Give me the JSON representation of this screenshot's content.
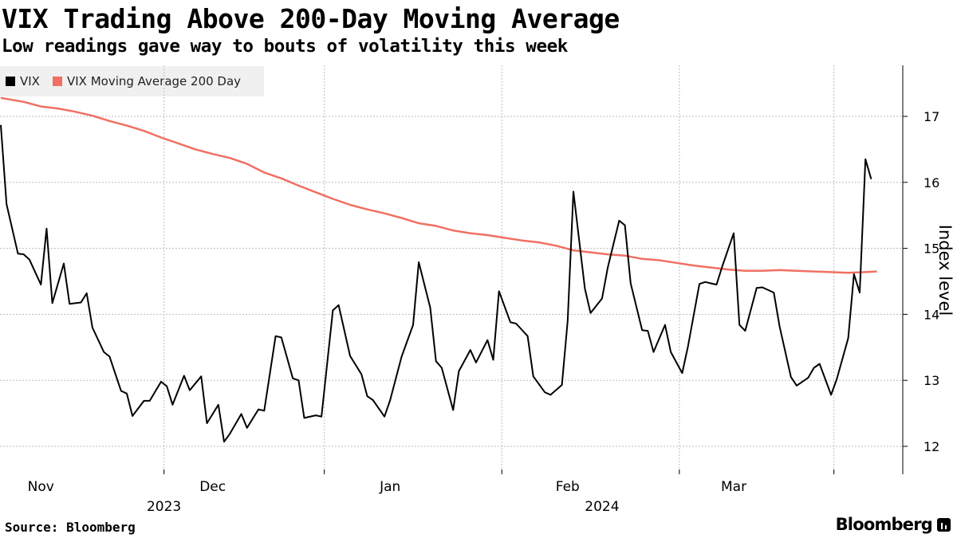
{
  "header": {
    "title": "VIX Trading Above 200-Day Moving Average",
    "subtitle": "Low readings gave way to bouts of volatility this week"
  },
  "footer": {
    "source": "Source: Bloomberg",
    "brand": "Bloomberg"
  },
  "colors": {
    "vix": "#000000",
    "ma": "#f07063",
    "grid": "#bdbdbd",
    "legend_bg": "#f0f0f0"
  },
  "chart_data": {
    "type": "line",
    "title": "VIX Trading Above 200-Day Moving Average",
    "subtitle": "Low readings gave way to bouts of volatility this week",
    "xlabel": "",
    "ylabel": "Index level",
    "ylim": [
      11.6,
      17.8
    ],
    "yticks": [
      12,
      13,
      14,
      15,
      16,
      17
    ],
    "ytick_labels": [
      "12",
      "13",
      "14",
      "15",
      "16",
      "17"
    ],
    "grid": true,
    "legend_position": "top-left",
    "x_range_days": [
      0,
      150
    ],
    "month_ticks": [
      {
        "label": "Nov",
        "day": 7
      },
      {
        "label": "Dec",
        "day": 37
      },
      {
        "label": "Jan",
        "day": 68
      },
      {
        "label": "Feb",
        "day": 99
      },
      {
        "label": "Mar",
        "day": 128
      }
    ],
    "month_boundaries": [
      28.5,
      56.5,
      87.5,
      118.5,
      145.5
    ],
    "year_labels": [
      {
        "label": "2023",
        "day": 28.5
      },
      {
        "label": "2024",
        "day": 105
      }
    ],
    "series": [
      {
        "name": "VIX",
        "color": "#000000",
        "points": [
          [
            0,
            16.87
          ],
          [
            1,
            15.67
          ],
          [
            3,
            14.92
          ],
          [
            4,
            14.91
          ],
          [
            5,
            14.83
          ],
          [
            7,
            14.45
          ],
          [
            8,
            15.3
          ],
          [
            9,
            14.17
          ],
          [
            11,
            14.77
          ],
          [
            12,
            14.16
          ],
          [
            14,
            14.18
          ],
          [
            15,
            14.32
          ],
          [
            16,
            13.8
          ],
          [
            18,
            13.43
          ],
          [
            19,
            13.36
          ],
          [
            21,
            12.84
          ],
          [
            22,
            12.8
          ],
          [
            23,
            12.46
          ],
          [
            25,
            12.69
          ],
          [
            26,
            12.69
          ],
          [
            28,
            12.98
          ],
          [
            29,
            12.91
          ],
          [
            30,
            12.63
          ],
          [
            32,
            13.07
          ],
          [
            33,
            12.85
          ],
          [
            35,
            13.06
          ],
          [
            36,
            12.35
          ],
          [
            38,
            12.63
          ],
          [
            39,
            12.07
          ],
          [
            40,
            12.19
          ],
          [
            42,
            12.49
          ],
          [
            43,
            12.28
          ],
          [
            45,
            12.56
          ],
          [
            46,
            12.54
          ],
          [
            48,
            13.67
          ],
          [
            49,
            13.65
          ],
          [
            51,
            13.03
          ],
          [
            52,
            13.0
          ],
          [
            53,
            12.43
          ],
          [
            55,
            12.47
          ],
          [
            56,
            12.45
          ],
          [
            58,
            14.06
          ],
          [
            59,
            14.14
          ],
          [
            61,
            13.37
          ],
          [
            63,
            13.09
          ],
          [
            64,
            12.76
          ],
          [
            65,
            12.7
          ],
          [
            67,
            12.45
          ],
          [
            68,
            12.7
          ],
          [
            70,
            13.36
          ],
          [
            72,
            13.84
          ],
          [
            73,
            14.79
          ],
          [
            75,
            14.1
          ],
          [
            76,
            13.29
          ],
          [
            77,
            13.19
          ],
          [
            79,
            12.55
          ],
          [
            80,
            13.14
          ],
          [
            82,
            13.46
          ],
          [
            83,
            13.27
          ],
          [
            85,
            13.61
          ],
          [
            86,
            13.31
          ],
          [
            87,
            14.35
          ],
          [
            89,
            13.88
          ],
          [
            90,
            13.86
          ],
          [
            92,
            13.67
          ],
          [
            93,
            13.06
          ],
          [
            95,
            12.82
          ],
          [
            96,
            12.78
          ],
          [
            98,
            12.93
          ],
          [
            99,
            13.9
          ],
          [
            100,
            15.86
          ],
          [
            102,
            14.39
          ],
          [
            103,
            14.02
          ],
          [
            105,
            14.24
          ],
          [
            106,
            14.71
          ],
          [
            108,
            15.42
          ],
          [
            109,
            15.35
          ],
          [
            110,
            14.47
          ],
          [
            112,
            13.76
          ],
          [
            113,
            13.75
          ],
          [
            114,
            13.43
          ],
          [
            116,
            13.84
          ],
          [
            117,
            13.43
          ],
          [
            119,
            13.11
          ],
          [
            120,
            13.51
          ],
          [
            122,
            14.46
          ],
          [
            123,
            14.49
          ],
          [
            125,
            14.45
          ],
          [
            126,
            14.73
          ],
          [
            128,
            15.23
          ],
          [
            129,
            13.84
          ],
          [
            130,
            13.75
          ],
          [
            132,
            14.4
          ],
          [
            133,
            14.41
          ],
          [
            135,
            14.33
          ],
          [
            136,
            13.82
          ],
          [
            138,
            13.05
          ],
          [
            139,
            12.92
          ],
          [
            141,
            13.04
          ],
          [
            142,
            13.19
          ],
          [
            143,
            13.25
          ],
          [
            145,
            12.78
          ],
          [
            146,
            13.02
          ],
          [
            148,
            13.64
          ],
          [
            149,
            14.61
          ],
          [
            150,
            14.33
          ],
          [
            151,
            16.35
          ],
          [
            152,
            16.05
          ]
        ]
      },
      {
        "name": "VIX Moving Average 200 Day",
        "color": "#f07063",
        "points": [
          [
            0,
            17.28
          ],
          [
            4,
            17.22
          ],
          [
            7,
            17.15
          ],
          [
            10,
            17.12
          ],
          [
            13,
            17.07
          ],
          [
            16,
            17.01
          ],
          [
            19,
            16.93
          ],
          [
            22,
            16.86
          ],
          [
            25,
            16.78
          ],
          [
            28,
            16.68
          ],
          [
            31,
            16.59
          ],
          [
            34,
            16.5
          ],
          [
            37,
            16.43
          ],
          [
            40,
            16.37
          ],
          [
            43,
            16.28
          ],
          [
            46,
            16.15
          ],
          [
            49,
            16.06
          ],
          [
            52,
            15.95
          ],
          [
            55,
            15.85
          ],
          [
            58,
            15.75
          ],
          [
            61,
            15.66
          ],
          [
            64,
            15.59
          ],
          [
            67,
            15.53
          ],
          [
            70,
            15.46
          ],
          [
            73,
            15.38
          ],
          [
            76,
            15.34
          ],
          [
            79,
            15.27
          ],
          [
            82,
            15.23
          ],
          [
            85,
            15.2
          ],
          [
            88,
            15.16
          ],
          [
            91,
            15.12
          ],
          [
            94,
            15.09
          ],
          [
            97,
            15.04
          ],
          [
            100,
            14.97
          ],
          [
            103,
            14.94
          ],
          [
            106,
            14.91
          ],
          [
            109,
            14.89
          ],
          [
            112,
            14.84
          ],
          [
            115,
            14.82
          ],
          [
            118,
            14.78
          ],
          [
            121,
            14.74
          ],
          [
            124,
            14.71
          ],
          [
            127,
            14.68
          ],
          [
            130,
            14.66
          ],
          [
            133,
            14.66
          ],
          [
            136,
            14.67
          ],
          [
            139,
            14.66
          ],
          [
            142,
            14.65
          ],
          [
            145,
            14.64
          ],
          [
            148,
            14.63
          ],
          [
            151,
            14.64
          ],
          [
            153,
            14.65
          ]
        ]
      }
    ]
  }
}
